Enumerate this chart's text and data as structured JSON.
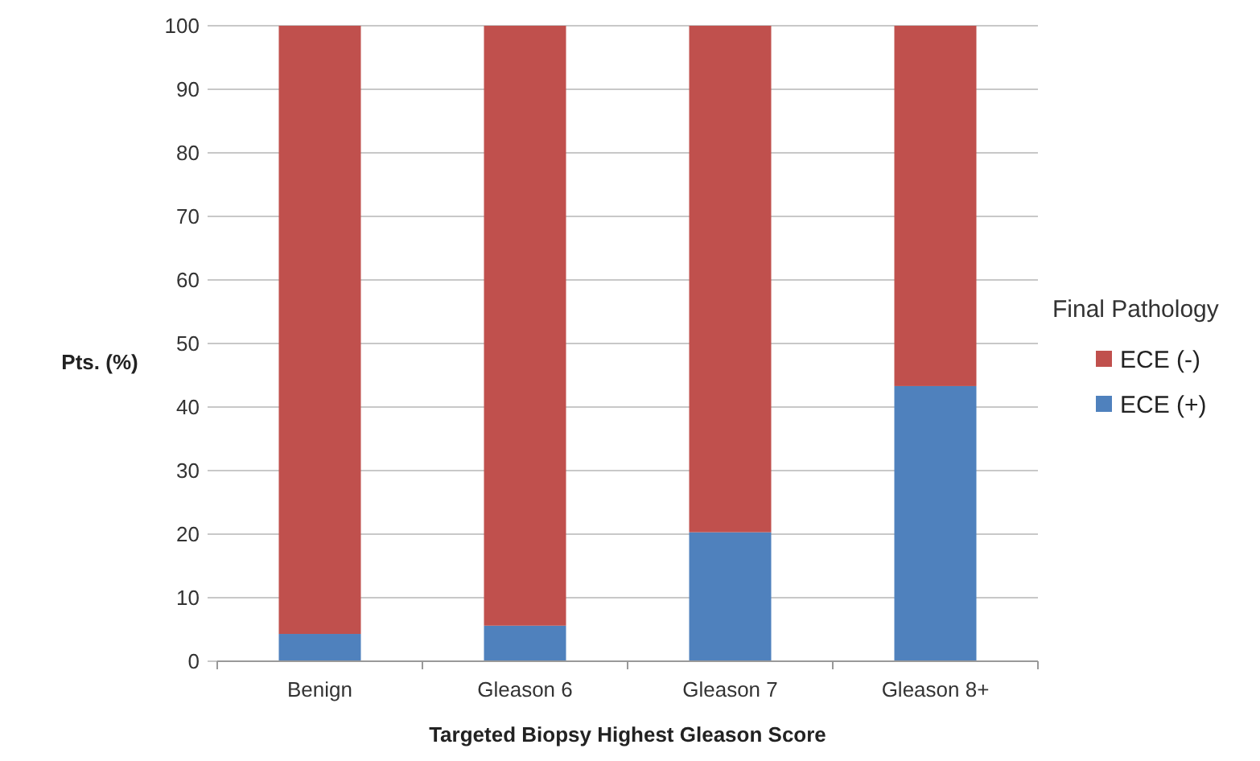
{
  "chart_data": {
    "type": "bar",
    "stacked": true,
    "xlabel": "Targeted Biopsy Highest Gleason Score",
    "ylabel": "Pts. (%)",
    "legend_title": "Final Pathology",
    "legend": "right",
    "grid": "y",
    "categories": [
      "Benign",
      "Gleason 6",
      "Gleason 7",
      "Gleason 8+"
    ],
    "series": [
      {
        "name": "ECE (+)",
        "color": "#4f81bd",
        "values": [
          4.3,
          5.6,
          20.3,
          43.3
        ]
      },
      {
        "name": "ECE (-)",
        "color": "#c0504d",
        "values": [
          95.7,
          94.4,
          79.7,
          56.7
        ]
      }
    ],
    "ylim": [
      0,
      100
    ],
    "yticks": [
      0,
      10,
      20,
      30,
      40,
      50,
      60,
      70,
      80,
      90,
      100
    ]
  }
}
